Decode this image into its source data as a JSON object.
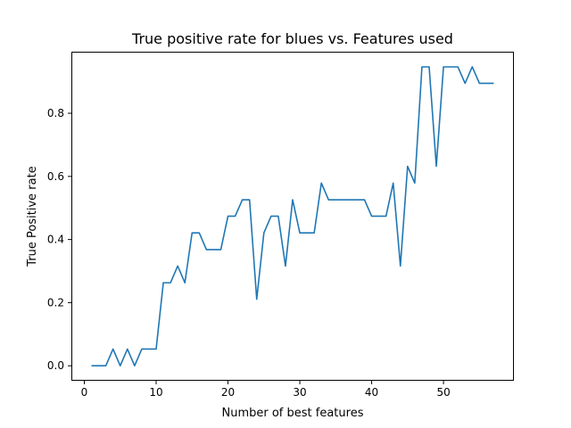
{
  "chart_data": {
    "type": "line",
    "title": "True positive rate for blues vs. Features used",
    "xlabel": "Number of best features",
    "ylabel": "True Positive rate",
    "xlim": [
      -1.8,
      59.8
    ],
    "ylim": [
      -0.0474,
      0.995
    ],
    "xticks": [
      0,
      10,
      20,
      30,
      40,
      50
    ],
    "yticks": [
      0.0,
      0.2,
      0.4,
      0.6,
      0.8
    ],
    "ytick_labels": [
      "0.0",
      "0.2",
      "0.4",
      "0.6",
      "0.8"
    ],
    "grid": false,
    "series": [
      {
        "color": "#1f77b4",
        "x": [
          1,
          2,
          3,
          4,
          5,
          6,
          7,
          8,
          9,
          10,
          11,
          12,
          13,
          14,
          15,
          16,
          17,
          18,
          19,
          20,
          21,
          22,
          23,
          24,
          25,
          26,
          27,
          28,
          29,
          30,
          31,
          32,
          33,
          34,
          35,
          36,
          37,
          38,
          39,
          40,
          41,
          42,
          43,
          44,
          45,
          46,
          47,
          48,
          49,
          50,
          51,
          52,
          53,
          54,
          55,
          56,
          57
        ],
        "y": [
          0,
          0,
          0,
          0.053,
          0,
          0.053,
          0,
          0.053,
          0.053,
          0.053,
          0.263,
          0.263,
          0.316,
          0.263,
          0.421,
          0.421,
          0.368,
          0.368,
          0.368,
          0.474,
          0.474,
          0.526,
          0.526,
          0.211,
          0.421,
          0.474,
          0.474,
          0.316,
          0.526,
          0.421,
          0.421,
          0.421,
          0.579,
          0.526,
          0.526,
          0.526,
          0.526,
          0.526,
          0.526,
          0.474,
          0.474,
          0.474,
          0.579,
          0.316,
          0.632,
          0.579,
          0.947,
          0.947,
          0.632,
          0.947,
          0.947,
          0.947,
          0.895,
          0.947,
          0.895,
          0.895,
          0.895
        ]
      }
    ]
  }
}
